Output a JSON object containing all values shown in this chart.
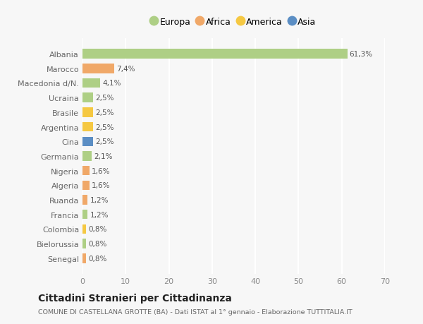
{
  "countries": [
    "Albania",
    "Marocco",
    "Macedonia d/N.",
    "Ucraina",
    "Brasile",
    "Argentina",
    "Cina",
    "Germania",
    "Nigeria",
    "Algeria",
    "Ruanda",
    "Francia",
    "Colombia",
    "Bielorussia",
    "Senegal"
  ],
  "values": [
    61.3,
    7.4,
    4.1,
    2.5,
    2.5,
    2.5,
    2.5,
    2.1,
    1.6,
    1.6,
    1.2,
    1.2,
    0.8,
    0.8,
    0.8
  ],
  "labels": [
    "61,3%",
    "7,4%",
    "4,1%",
    "2,5%",
    "2,5%",
    "2,5%",
    "2,5%",
    "2,1%",
    "1,6%",
    "1,6%",
    "1,2%",
    "1,2%",
    "0,8%",
    "0,8%",
    "0,8%"
  ],
  "colors": [
    "#aecf85",
    "#f0a868",
    "#aecf85",
    "#aecf85",
    "#f5c842",
    "#f5c842",
    "#5b8ec4",
    "#aecf85",
    "#f0a868",
    "#f0a868",
    "#f0a868",
    "#aecf85",
    "#f5c842",
    "#aecf85",
    "#f0a868"
  ],
  "legend_labels": [
    "Europa",
    "Africa",
    "America",
    "Asia"
  ],
  "legend_colors": [
    "#aecf85",
    "#f0a868",
    "#f5c842",
    "#5b8ec4"
  ],
  "title": "Cittadini Stranieri per Cittadinanza",
  "subtitle": "COMUNE DI CASTELLANA GROTTE (BA) - Dati ISTAT al 1° gennaio - Elaborazione TUTTITALIA.IT",
  "xlim": [
    0,
    70
  ],
  "xticks": [
    0,
    10,
    20,
    30,
    40,
    50,
    60,
    70
  ],
  "background_color": "#f7f7f7",
  "grid_color": "#ffffff",
  "bar_height": 0.65
}
